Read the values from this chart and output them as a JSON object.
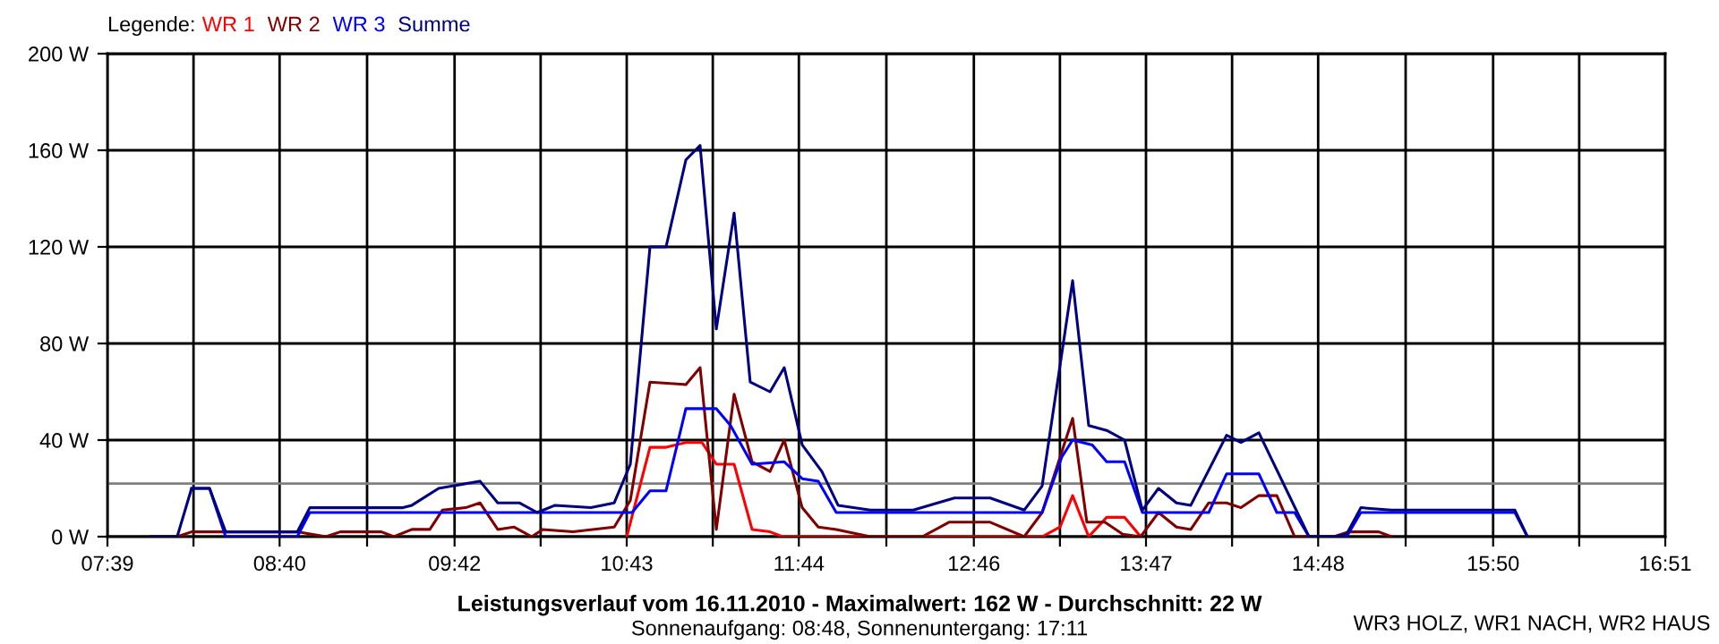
{
  "chart_data": {
    "type": "line",
    "title": "Leistungsverlauf vom 16.11.2010 - Maximalwert: 162 W - Durchschnitt: 22 W",
    "subtitle": "Sonnenaufgang: 08:48, Sonnenuntergang: 17:11",
    "legend_title": "Legende:",
    "annotations": [
      "WR3 HOLZ, WR1 NACH, WR2 HAUS"
    ],
    "series": [
      {
        "name": "WR 1",
        "color": "#ff0000",
        "x": [
          10.717,
          10.854,
          10.949,
          11.066,
          11.161,
          11.246,
          11.351,
          11.457,
          11.563,
          11.637,
          13.17,
          13.276,
          13.35,
          13.445,
          13.551,
          13.657,
          13.752
        ],
        "values": [
          0,
          37,
          37,
          39,
          39,
          30,
          30,
          3,
          2,
          0,
          0,
          4,
          17,
          0,
          8,
          8,
          0
        ]
      },
      {
        "name": "WR 2",
        "color": "#800000",
        "x": [
          7.904,
          8.062,
          8.147,
          8.771,
          8.94,
          9.025,
          9.268,
          9.342,
          9.448,
          9.554,
          9.628,
          9.765,
          9.85,
          9.955,
          10.05,
          10.156,
          10.22,
          10.4,
          10.643,
          10.738,
          10.854,
          11.066,
          11.15,
          11.246,
          11.351,
          11.457,
          11.563,
          11.647,
          11.753,
          11.848,
          11.954,
          12.155,
          12.462,
          12.62,
          12.863,
          13.064,
          13.17,
          13.35,
          13.434,
          13.54,
          13.646,
          13.752,
          13.857,
          13.963,
          14.048,
          14.154,
          14.259,
          14.344,
          14.45,
          14.556,
          14.661,
          14.894,
          14.978,
          15.158,
          15.232
        ],
        "values": [
          0,
          0,
          2,
          2,
          0,
          2,
          2,
          0,
          3,
          3,
          11,
          12,
          14,
          3,
          4,
          0,
          3,
          2,
          4,
          15,
          64,
          63,
          70,
          3,
          59,
          31,
          27,
          40,
          12,
          4,
          3,
          0,
          0,
          6,
          6,
          0,
          10,
          49,
          6,
          6,
          1,
          0,
          10,
          4,
          3,
          14,
          14,
          12,
          17,
          17,
          0,
          0,
          2,
          2,
          0
        ]
      },
      {
        "name": "WR 3",
        "color": "#0000ff",
        "x": [
          8.147,
          8.253,
          8.348,
          8.771,
          8.845,
          10.748,
          10.854,
          10.949,
          11.066,
          11.246,
          11.33,
          11.457,
          11.647,
          11.753,
          11.848,
          11.954,
          13.17,
          13.286,
          13.35,
          13.466,
          13.551,
          13.657,
          13.762,
          14.154,
          14.259,
          14.45,
          14.556,
          14.661,
          14.746,
          14.968,
          15.052,
          15.962,
          16.036
        ],
        "values": [
          20,
          20,
          0,
          0,
          10,
          10,
          19,
          19,
          53,
          53,
          46,
          30,
          31,
          24,
          23,
          10,
          10,
          33,
          40,
          38,
          31,
          31,
          10,
          10,
          26,
          26,
          10,
          10,
          0,
          0,
          10,
          10,
          0
        ]
      },
      {
        "name": "Summe",
        "color": "#000080",
        "x": [
          7.904,
          8.062,
          8.147,
          8.253,
          8.348,
          8.771,
          8.845,
          9.395,
          9.448,
          9.606,
          9.85,
          9.955,
          10.082,
          10.188,
          10.294,
          10.505,
          10.643,
          10.738,
          10.854,
          10.949,
          11.066,
          11.15,
          11.246,
          11.351,
          11.446,
          11.563,
          11.647,
          11.753,
          11.869,
          11.965,
          12.155,
          12.409,
          12.652,
          12.863,
          13.064,
          13.17,
          13.35,
          13.445,
          13.551,
          13.657,
          13.762,
          13.857,
          13.963,
          14.048,
          14.259,
          14.344,
          14.45,
          14.746,
          14.894,
          14.968,
          15.052,
          15.232,
          15.962,
          16.036
        ],
        "values": [
          0,
          0,
          20,
          20,
          2,
          2,
          12,
          12,
          13,
          20,
          23,
          14,
          14,
          10,
          13,
          12,
          14,
          30,
          120,
          120,
          156,
          162,
          86,
          134,
          64,
          60,
          70,
          38,
          27,
          13,
          11,
          11,
          16,
          16,
          11,
          21,
          106,
          46,
          44,
          40,
          11,
          20,
          14,
          13,
          42,
          39,
          43,
          0,
          0,
          1,
          12,
          11,
          11,
          0
        ]
      }
    ],
    "xlim": [
      7.65,
      16.85
    ],
    "xticks": [
      {
        "value": 7.65,
        "label": "07:39"
      },
      {
        "value": 8.1583,
        "label": null
      },
      {
        "value": 8.6667,
        "label": "08:40"
      },
      {
        "value": 9.1833,
        "label": null
      },
      {
        "value": 9.7,
        "label": "09:42"
      },
      {
        "value": 10.2083,
        "label": null
      },
      {
        "value": 10.7167,
        "label": "10:43"
      },
      {
        "value": 11.225,
        "label": null
      },
      {
        "value": 11.7333,
        "label": "11:44"
      },
      {
        "value": 12.25,
        "label": null
      },
      {
        "value": 12.7667,
        "label": "12:46"
      },
      {
        "value": 13.275,
        "label": null
      },
      {
        "value": 13.7833,
        "label": "13:47"
      },
      {
        "value": 14.2917,
        "label": null
      },
      {
        "value": 14.8,
        "label": "14:48"
      },
      {
        "value": 15.3167,
        "label": null
      },
      {
        "value": 15.8333,
        "label": "15:50"
      },
      {
        "value": 16.3417,
        "label": null
      },
      {
        "value": 16.85,
        "label": "16:51"
      }
    ],
    "ylim": [
      0,
      200
    ],
    "yticks": [
      {
        "value": 0,
        "label": "0 W"
      },
      {
        "value": 40,
        "label": "40 W"
      },
      {
        "value": 80,
        "label": "80 W"
      },
      {
        "value": 120,
        "label": "120 W"
      },
      {
        "value": 160,
        "label": "160 W"
      },
      {
        "value": 200,
        "label": "200 W"
      }
    ],
    "ref_lines": [
      {
        "axis": "y",
        "value": 22,
        "label": null,
        "color": "#808080"
      }
    ],
    "grid": true,
    "legend": "top left",
    "marker": "none",
    "line_style": "solid"
  }
}
